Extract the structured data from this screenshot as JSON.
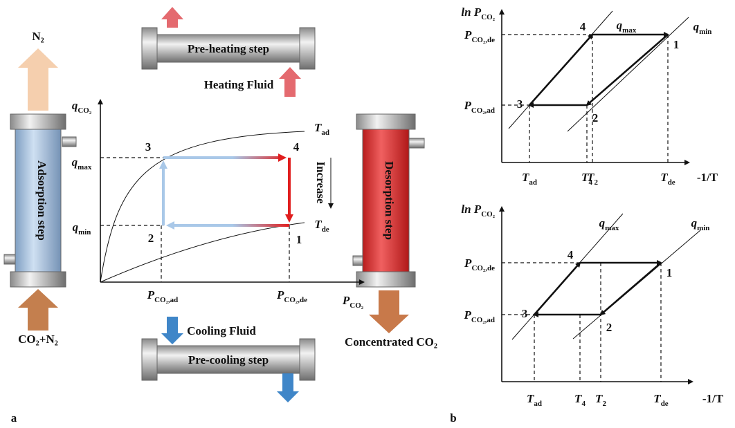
{
  "panel_a": {
    "label": "a",
    "adsorption_column": {
      "label": "Adsorption step",
      "top_output": "N₂",
      "bottom_input": "CO₂+N₂"
    },
    "preheating": {
      "label": "Pre-heating step",
      "fluid": "Heating Fluid"
    },
    "desorption_column": {
      "label": "Desorption step",
      "output": "Concentrated CO₂"
    },
    "precooling": {
      "label": "Pre-cooling step",
      "fluid": "Cooling Fluid"
    },
    "isotherm_plot": {
      "y_axis": {
        "symbol": "q",
        "subscript": "CO₂"
      },
      "x_axis": {
        "symbol": "P",
        "subscript": "CO₂"
      },
      "y_levels": [
        {
          "symbol": "q",
          "subscript": "max"
        },
        {
          "symbol": "q",
          "subscript": "min"
        }
      ],
      "x_levels": [
        {
          "symbol": "P",
          "subscript": "CO₂,ad"
        },
        {
          "symbol": "P",
          "subscript": "CO₂,de"
        }
      ],
      "isotherms": [
        {
          "symbol": "T",
          "subscript": "ad"
        },
        {
          "symbol": "T",
          "subscript": "de"
        }
      ],
      "points": [
        "1",
        "2",
        "3",
        "4"
      ],
      "arrow_label": "Increase"
    }
  },
  "panel_b": {
    "label": "b",
    "plots": [
      {
        "y_axis": {
          "symbol": "ln P",
          "subscript": "CO₂"
        },
        "x_axis": "-1/T",
        "y_levels": [
          {
            "symbol": "P",
            "subscript": "CO₂,de"
          },
          {
            "symbol": "P",
            "subscript": "CO₂,ad"
          }
        ],
        "lines": [
          {
            "symbol": "q",
            "subscript": "max"
          },
          {
            "symbol": "q",
            "subscript": "min"
          }
        ],
        "x_levels": [
          {
            "symbol": "T",
            "subscript": "ad"
          },
          {
            "symbol": "T",
            "subscript": "4"
          },
          {
            "symbol": "T",
            "subscript": "2"
          },
          {
            "symbol": "T",
            "subscript": "de"
          }
        ],
        "points": [
          "1",
          "2",
          "3",
          "4"
        ]
      },
      {
        "y_axis": {
          "symbol": "ln P",
          "subscript": "CO₂"
        },
        "x_axis": "-1/T",
        "y_levels": [
          {
            "symbol": "P",
            "subscript": "CO₂,de"
          },
          {
            "symbol": "P",
            "subscript": "CO₂,ad"
          }
        ],
        "lines": [
          {
            "symbol": "q",
            "subscript": "max"
          },
          {
            "symbol": "q",
            "subscript": "min"
          }
        ],
        "x_levels": [
          {
            "symbol": "T",
            "subscript": "ad"
          },
          {
            "symbol": "T",
            "subscript": "4"
          },
          {
            "symbol": "T",
            "subscript": "2"
          },
          {
            "symbol": "T",
            "subscript": "de"
          }
        ],
        "points": [
          "1",
          "2",
          "3",
          "4"
        ]
      }
    ]
  }
}
